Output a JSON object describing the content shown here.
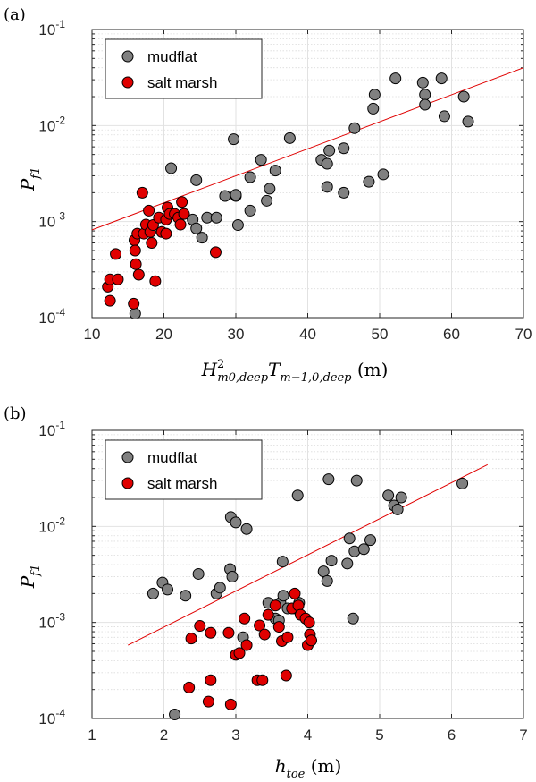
{
  "chart_data": [
    {
      "type": "scatter",
      "panel_label": "(a)",
      "xlabel": "H",
      "xlabel_sup": "2",
      "xlabel_sub": "m0,deep",
      "xlabel_mid": "T",
      "xlabel_sub2": "m−1,0,deep",
      "xlabel_unit": " (m)",
      "ylabel": "P",
      "ylabel_sub": "f1",
      "xlim": [
        10,
        70
      ],
      "ylim": [
        0.0001,
        0.1
      ],
      "yscale": "log",
      "grid": true,
      "legend_position": "top-left",
      "xticks": [
        "10",
        "20",
        "30",
        "40",
        "50",
        "60",
        "70"
      ],
      "yticks": [
        {
          "base": "10",
          "exp": "-4"
        },
        {
          "base": "10",
          "exp": "-3"
        },
        {
          "base": "10",
          "exp": "-2"
        },
        {
          "base": "10",
          "exp": "-1"
        }
      ],
      "series": [
        {
          "name": "mudflat",
          "color": "#808080",
          "points": [
            [
              16.0,
              0.00011
            ],
            [
              21.0,
              0.0036
            ],
            [
              24.5,
              0.0027
            ],
            [
              24.0,
              0.00105
            ],
            [
              24.5,
              0.00085
            ],
            [
              25.3,
              0.00068
            ],
            [
              26.0,
              0.0011
            ],
            [
              27.3,
              0.0011
            ],
            [
              28.5,
              0.00185
            ],
            [
              29.7,
              0.0072
            ],
            [
              30.0,
              0.00185
            ],
            [
              30.0,
              0.0019
            ],
            [
              30.3,
              0.00092
            ],
            [
              32.0,
              0.0029
            ],
            [
              32.0,
              0.0013
            ],
            [
              33.5,
              0.0044
            ],
            [
              34.3,
              0.00165
            ],
            [
              34.7,
              0.0022
            ],
            [
              35.5,
              0.0034
            ],
            [
              37.5,
              0.0074
            ],
            [
              41.9,
              0.0044
            ],
            [
              42.7,
              0.004
            ],
            [
              42.7,
              0.0023
            ],
            [
              43.0,
              0.0055
            ],
            [
              45.0,
              0.002
            ],
            [
              45.0,
              0.0058
            ],
            [
              46.5,
              0.0094
            ],
            [
              48.5,
              0.0026
            ],
            [
              49.1,
              0.015
            ],
            [
              49.3,
              0.021
            ],
            [
              50.5,
              0.0031
            ],
            [
              52.2,
              0.031
            ],
            [
              56.0,
              0.028
            ],
            [
              56.3,
              0.021
            ],
            [
              56.3,
              0.0165
            ],
            [
              58.6,
              0.031
            ],
            [
              59.0,
              0.0125
            ],
            [
              61.7,
              0.02
            ],
            [
              62.3,
              0.011
            ]
          ]
        },
        {
          "name": "salt marsh",
          "color": "#e00000",
          "points": [
            [
              12.2,
              0.00021
            ],
            [
              12.5,
              0.00025
            ],
            [
              12.5,
              0.00015
            ],
            [
              13.3,
              0.00046
            ],
            [
              13.6,
              0.00025
            ],
            [
              15.8,
              0.00014
            ],
            [
              15.9,
              0.00064
            ],
            [
              16.0,
              0.0005
            ],
            [
              16.1,
              0.00036
            ],
            [
              16.3,
              0.00075
            ],
            [
              16.5,
              0.00028
            ],
            [
              17.0,
              0.002
            ],
            [
              17.2,
              0.00075
            ],
            [
              17.5,
              0.00093
            ],
            [
              17.9,
              0.0013
            ],
            [
              18.1,
              0.00078
            ],
            [
              18.3,
              0.0006
            ],
            [
              18.5,
              0.00092
            ],
            [
              18.8,
              0.00024
            ],
            [
              19.3,
              0.0011
            ],
            [
              19.7,
              0.00078
            ],
            [
              20.3,
              0.00105
            ],
            [
              20.3,
              0.00075
            ],
            [
              20.5,
              0.0014
            ],
            [
              20.8,
              0.0012
            ],
            [
              21.5,
              0.0012
            ],
            [
              22.0,
              0.0011
            ],
            [
              22.3,
              0.00093
            ],
            [
              22.5,
              0.0016
            ],
            [
              22.8,
              0.0012
            ],
            [
              27.2,
              0.00048
            ]
          ]
        }
      ],
      "fit_line": {
        "color": "#e00000",
        "x": [
          10,
          70
        ],
        "y": [
          0.00082,
          0.04
        ]
      }
    },
    {
      "type": "scatter",
      "panel_label": "(b)",
      "xlabel": "h",
      "xlabel_sub": "toe",
      "xlabel_unit": " (m)",
      "ylabel": "P",
      "ylabel_sub": "f1",
      "xlim": [
        1,
        7
      ],
      "ylim": [
        0.0001,
        0.1
      ],
      "yscale": "log",
      "grid": true,
      "legend_position": "top-left",
      "xticks": [
        "1",
        "2",
        "3",
        "4",
        "5",
        "6",
        "7"
      ],
      "yticks": [
        {
          "base": "10",
          "exp": "-4"
        },
        {
          "base": "10",
          "exp": "-3"
        },
        {
          "base": "10",
          "exp": "-2"
        },
        {
          "base": "10",
          "exp": "-1"
        }
      ],
      "series": [
        {
          "name": "mudflat",
          "color": "#808080",
          "points": [
            [
              1.85,
              0.002
            ],
            [
              1.98,
              0.0026
            ],
            [
              2.05,
              0.0022
            ],
            [
              2.15,
              0.00011
            ],
            [
              2.3,
              0.0019
            ],
            [
              2.48,
              0.0032
            ],
            [
              2.73,
              0.002
            ],
            [
              2.78,
              0.0023
            ],
            [
              2.92,
              0.0036
            ],
            [
              2.95,
              0.003
            ],
            [
              2.93,
              0.0125
            ],
            [
              3.0,
              0.011
            ],
            [
              3.1,
              0.0007
            ],
            [
              3.15,
              0.0094
            ],
            [
              3.45,
              0.0016
            ],
            [
              3.55,
              0.0011
            ],
            [
              3.6,
              0.00105
            ],
            [
              3.62,
              0.0016
            ],
            [
              3.65,
              0.0043
            ],
            [
              3.66,
              0.0019
            ],
            [
              3.72,
              0.0014
            ],
            [
              3.82,
              0.0014
            ],
            [
              3.86,
              0.021
            ],
            [
              3.88,
              0.0016
            ],
            [
              4.22,
              0.0034
            ],
            [
              4.27,
              0.0027
            ],
            [
              4.29,
              0.031
            ],
            [
              4.33,
              0.0044
            ],
            [
              4.55,
              0.0041
            ],
            [
              4.58,
              0.0075
            ],
            [
              4.63,
              0.0011
            ],
            [
              4.65,
              0.0055
            ],
            [
              4.68,
              0.03
            ],
            [
              4.78,
              0.0058
            ],
            [
              4.87,
              0.0072
            ],
            [
              5.12,
              0.021
            ],
            [
              5.2,
              0.0165
            ],
            [
              5.25,
              0.015
            ],
            [
              5.3,
              0.02
            ],
            [
              6.15,
              0.028
            ]
          ]
        },
        {
          "name": "salt marsh",
          "color": "#e00000",
          "points": [
            [
              2.35,
              0.00021
            ],
            [
              2.38,
              0.00068
            ],
            [
              2.5,
              0.00092
            ],
            [
              2.62,
              0.00015
            ],
            [
              2.65,
              0.00025
            ],
            [
              2.65,
              0.00078
            ],
            [
              2.9,
              0.00078
            ],
            [
              2.93,
              0.00014
            ],
            [
              3.0,
              0.00046
            ],
            [
              3.05,
              0.00048
            ],
            [
              3.12,
              0.0011
            ],
            [
              3.15,
              0.00058
            ],
            [
              3.3,
              0.00025
            ],
            [
              3.33,
              0.00093
            ],
            [
              3.37,
              0.00025
            ],
            [
              3.4,
              0.00075
            ],
            [
              3.45,
              0.0012
            ],
            [
              3.55,
              0.0015
            ],
            [
              3.6,
              0.0009
            ],
            [
              3.64,
              0.00064
            ],
            [
              3.7,
              0.00028
            ],
            [
              3.72,
              0.0007
            ],
            [
              3.78,
              0.0014
            ],
            [
              3.82,
              0.002
            ],
            [
              3.87,
              0.0015
            ],
            [
              3.9,
              0.0012
            ],
            [
              3.97,
              0.0011
            ],
            [
              4.0,
              0.00058
            ],
            [
              4.02,
              0.001
            ],
            [
              4.03,
              0.00075
            ],
            [
              4.05,
              0.00065
            ]
          ]
        }
      ],
      "fit_line": {
        "color": "#e00000",
        "x": [
          1.5,
          6.5
        ],
        "y": [
          0.00058,
          0.044
        ]
      }
    }
  ]
}
